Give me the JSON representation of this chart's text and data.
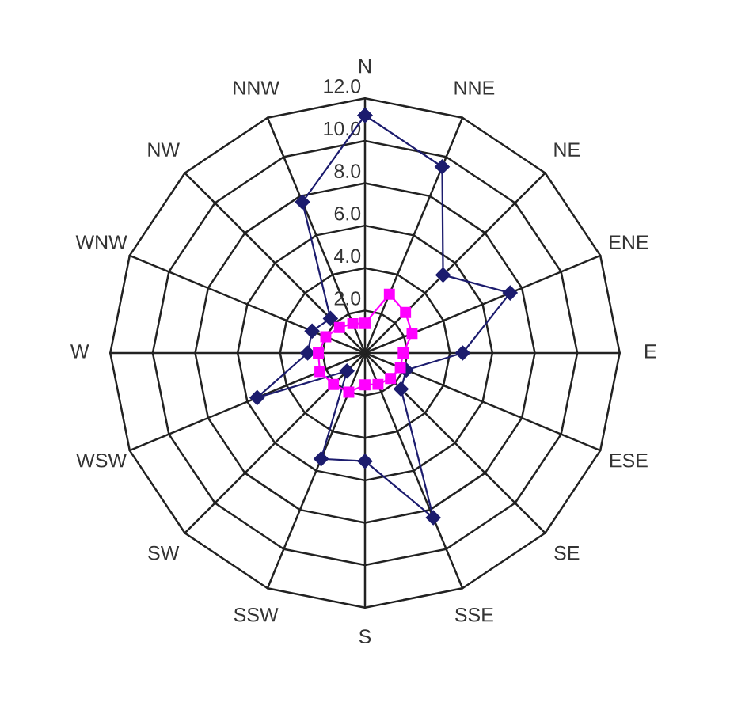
{
  "chart_data": {
    "type": "radar",
    "categories": [
      "N",
      "NNE",
      "NE",
      "ENE",
      "E",
      "ESE",
      "SE",
      "SSE",
      "S",
      "SSW",
      "SW",
      "WSW",
      "W",
      "WNW",
      "NW",
      "NNW"
    ],
    "series": [
      {
        "color": "#1c1c6e",
        "marker": "diamond",
        "values": [
          11.2,
          9.5,
          5.2,
          7.4,
          4.6,
          2.1,
          2.4,
          8.4,
          5.1,
          5.4,
          1.2,
          5.5,
          2.7,
          2.7,
          2.3,
          7.7
        ]
      },
      {
        "color": "#ff00ff",
        "marker": "square",
        "values": [
          1.4,
          3.0,
          2.7,
          2.4,
          1.8,
          1.8,
          1.7,
          1.6,
          1.5,
          2.0,
          2.1,
          2.3,
          2.2,
          2.0,
          1.7,
          1.5
        ]
      }
    ],
    "ylim": [
      0,
      12
    ],
    "yticks": [
      {
        "value": 2,
        "label": "2.0"
      },
      {
        "value": 4,
        "label": "4.0"
      },
      {
        "value": 6,
        "label": "6.0"
      },
      {
        "value": 8,
        "label": "8.0"
      },
      {
        "value": 10,
        "label": "10.0"
      },
      {
        "value": 12,
        "label": "12.0"
      }
    ],
    "grid": true
  }
}
